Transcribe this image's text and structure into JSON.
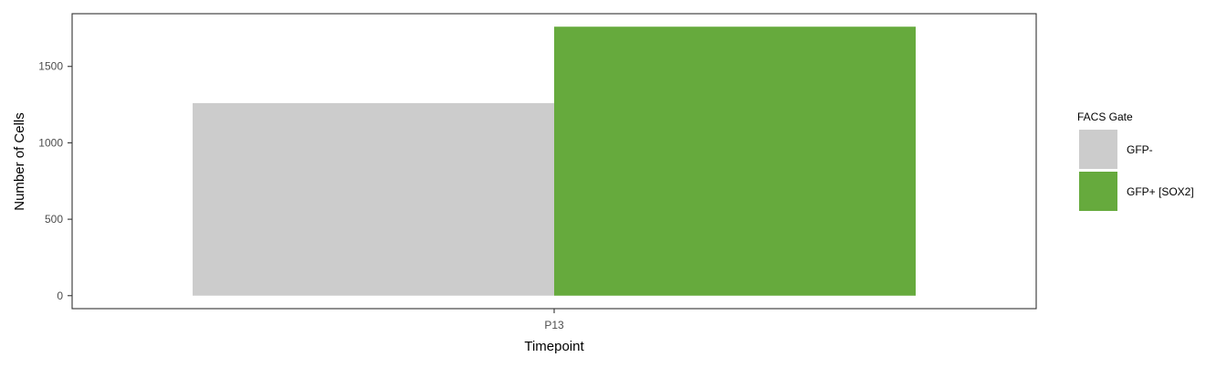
{
  "chart_data": {
    "type": "bar",
    "categories": [
      "P13"
    ],
    "series": [
      {
        "name": "GFP-",
        "values": [
          1260
        ],
        "color": "#cccccc"
      },
      {
        "name": "GFP+ [SOX2]",
        "values": [
          1760
        ],
        "color": "#66aa3d"
      }
    ],
    "xlabel": "Timepoint",
    "ylabel": "Number of Cells",
    "ylim": [
      -85,
      1845
    ],
    "yticks": [
      0,
      500,
      1000,
      1500
    ],
    "grid": false,
    "legend": {
      "title": "FACS Gate",
      "position": "right"
    }
  }
}
